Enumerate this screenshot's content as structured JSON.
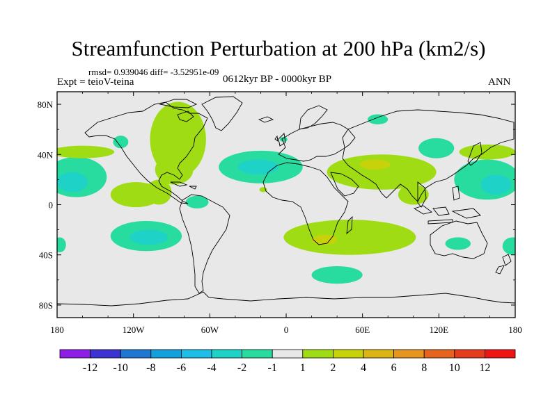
{
  "title": "Streamfunction Perturbation at 200 hPa (km2/s)",
  "stats": "rmsd= 0.939046 diff= -3.52951e-09",
  "experiment": "Expt = teioV-teina",
  "period": "0612kyr BP - 0000kyr BP",
  "season": "ANN",
  "map": {
    "lon_range": [
      -180,
      180
    ],
    "lat_range": [
      -90,
      90
    ],
    "lon_ticks": [
      {
        "value": -180,
        "label": "180"
      },
      {
        "value": -120,
        "label": "120W"
      },
      {
        "value": -60,
        "label": "60W"
      },
      {
        "value": 0,
        "label": "0"
      },
      {
        "value": 60,
        "label": "60E"
      },
      {
        "value": 120,
        "label": "120E"
      },
      {
        "value": 180,
        "label": "180"
      }
    ],
    "lat_ticks": [
      {
        "value": 80,
        "label": "80N"
      },
      {
        "value": 40,
        "label": "40N"
      },
      {
        "value": 0,
        "label": "0"
      },
      {
        "value": -40,
        "label": "40S"
      },
      {
        "value": -80,
        "label": "80S"
      }
    ],
    "background_color": "#e8e8e8"
  },
  "colorbar": {
    "colors": [
      "#8c1ee6",
      "#3c32d2",
      "#1e78d2",
      "#14a0dc",
      "#1ebee6",
      "#1ed2c8",
      "#28dca0",
      "#e8e8e8",
      "#a0dc14",
      "#c8d20a",
      "#dcb414",
      "#e6961e",
      "#e6641e",
      "#e63c1e",
      "#f01414"
    ],
    "labels": [
      "-12",
      "-10",
      "-8",
      "-6",
      "-4",
      "-2",
      "-1",
      "1",
      "2",
      "4",
      "6",
      "8",
      "10",
      "12"
    ]
  },
  "anomaly_regions": [
    {
      "id": "n-america-trough",
      "level": "2",
      "color": "#a0dc14",
      "lon": -85,
      "lat": 52,
      "rlon": 22,
      "rlat": 30
    },
    {
      "id": "gulf-extension",
      "level": "2",
      "color": "#a0dc14",
      "lon": -88,
      "lat": 28,
      "rlon": 15,
      "rlat": 12
    },
    {
      "id": "mexico-lobe",
      "level": "2",
      "color": "#a0dc14",
      "lon": -100,
      "lat": 10,
      "rlon": 10,
      "rlat": 10
    },
    {
      "id": "atlantic-low",
      "level": "-1",
      "color": "#28dca0",
      "lon": -20,
      "lat": 30,
      "rlon": 33,
      "rlat": 13
    },
    {
      "id": "atlantic-core",
      "level": "-2",
      "color": "#1ed2c8",
      "lon": -22,
      "lat": 30,
      "rlon": 16,
      "rlat": 6
    },
    {
      "id": "pacific-w-low",
      "level": "-1",
      "color": "#28dca0",
      "lon": -165,
      "lat": 22,
      "rlon": 24,
      "rlat": 16
    },
    {
      "id": "pacific-w-core",
      "level": "-2",
      "color": "#1ed2c8",
      "lon": -168,
      "lat": 18,
      "rlon": 12,
      "rlat": 8
    },
    {
      "id": "pacific-w-ridge",
      "level": "2",
      "color": "#a0dc14",
      "lon": -160,
      "lat": 42,
      "rlon": 25,
      "rlat": 5
    },
    {
      "id": "n-pacific-ridge",
      "level": "2",
      "color": "#a0dc14",
      "lon": -118,
      "lat": 8,
      "rlon": 20,
      "rlat": 10
    },
    {
      "id": "gulf-alaska-low",
      "level": "-1",
      "color": "#28dca0",
      "lon": -130,
      "lat": 50,
      "rlon": 6,
      "rlat": 5
    },
    {
      "id": "pacific-e-low",
      "level": "-1",
      "color": "#28dca0",
      "lon": 158,
      "lat": 20,
      "rlon": 26,
      "rlat": 16
    },
    {
      "id": "pacific-e-core",
      "level": "-2",
      "color": "#1ed2c8",
      "lon": 165,
      "lat": 16,
      "rlon": 12,
      "rlat": 8
    },
    {
      "id": "pacific-e-ridge",
      "level": "2",
      "color": "#a0dc14",
      "lon": 158,
      "lat": 42,
      "rlon": 22,
      "rlat": 6
    },
    {
      "id": "asia-ridge",
      "level": "2",
      "color": "#a0dc14",
      "lon": 75,
      "lat": 26,
      "rlon": 43,
      "rlat": 14
    },
    {
      "id": "asia-ridge-core",
      "level": "4",
      "color": "#c8d20a",
      "lon": 70,
      "lat": 32,
      "rlon": 12,
      "rlat": 4
    },
    {
      "id": "se-asia-tail",
      "level": "2",
      "color": "#a0dc14",
      "lon": 100,
      "lat": 8,
      "rlon": 12,
      "rlat": 8
    },
    {
      "id": "ne-asia-low",
      "level": "-1",
      "color": "#28dca0",
      "lon": 118,
      "lat": 45,
      "rlon": 14,
      "rlat": 8
    },
    {
      "id": "siberia-low",
      "level": "-1",
      "color": "#28dca0",
      "lon": 72,
      "lat": 68,
      "rlon": 8,
      "rlat": 4
    },
    {
      "id": "s-pacific-low",
      "level": "-1",
      "color": "#28dca0",
      "lon": -110,
      "lat": -25,
      "rlon": 28,
      "rlat": 12
    },
    {
      "id": "s-pacific-core",
      "level": "-2",
      "color": "#1ed2c8",
      "lon": -108,
      "lat": -26,
      "rlon": 15,
      "rlat": 6
    },
    {
      "id": "peru-low",
      "level": "-1",
      "color": "#28dca0",
      "lon": -70,
      "lat": 2,
      "rlon": 9,
      "rlat": 5
    },
    {
      "id": "s-indian-ridge",
      "level": "2",
      "color": "#a0dc14",
      "lon": 50,
      "lat": -26,
      "rlon": 52,
      "rlat": 14
    },
    {
      "id": "s-indian-core",
      "level": "4",
      "color": "#c8d20a",
      "lon": 30,
      "lat": -28,
      "rlon": 10,
      "rlat": 4
    },
    {
      "id": "s-atlantic-low",
      "level": "-1",
      "color": "#28dca0",
      "lon": 40,
      "lat": -56,
      "rlon": 20,
      "rlat": 7
    },
    {
      "id": "australia-low",
      "level": "-1",
      "color": "#28dca0",
      "lon": 135,
      "lat": -31,
      "rlon": 10,
      "rlat": 5
    },
    {
      "id": "se-pacific-edge",
      "level": "-1",
      "color": "#28dca0",
      "lon": 178,
      "lat": -33,
      "rlon": 8,
      "rlat": 7
    },
    {
      "id": "sw-pacific-edge",
      "level": "-1",
      "color": "#28dca0",
      "lon": -178,
      "lat": -32,
      "rlon": 5,
      "rlat": 6
    },
    {
      "id": "arctic-island",
      "level": "-1",
      "color": "#28dca0",
      "lon": -2,
      "lat": 52,
      "rlon": 3,
      "rlat": 2
    },
    {
      "id": "n-africa-blob",
      "level": "2",
      "color": "#a0dc14",
      "lon": -18,
      "lat": 12,
      "rlon": 3,
      "rlat": 2
    }
  ]
}
